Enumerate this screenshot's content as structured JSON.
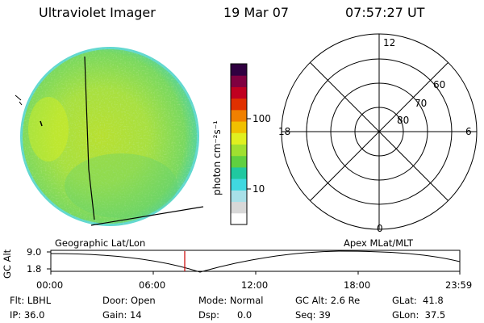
{
  "header": {
    "instrument": "Ultraviolet Imager",
    "date": "19 Mar 07",
    "time": "07:57:27 UT"
  },
  "colorbar": {
    "unit_label": "photon cm⁻²s⁻¹",
    "ticks": [
      "100",
      "10"
    ],
    "colors": [
      "#ffffff",
      "#d8d8d8",
      "#a8e0e8",
      "#40d8e0",
      "#20c8a0",
      "#60d040",
      "#a0e030",
      "#e0f020",
      "#f0c000",
      "#f08000",
      "#e03000",
      "#c00020",
      "#800040",
      "#300040"
    ]
  },
  "polar": {
    "mlt_labels": {
      "top": "12",
      "bottom": "0",
      "left": "18",
      "right": "6"
    },
    "lat_labels": [
      "60",
      "70",
      "80"
    ]
  },
  "timeline": {
    "left_title": "Geographic Lat/Lon",
    "right_title": "Apex MLat/MLT",
    "axis_label": "GC Alt",
    "y_ticks": [
      "9.0",
      "1.8"
    ],
    "x_ticks": [
      "00:00",
      "06:00",
      "12:00",
      "18:00",
      "23:59"
    ],
    "current_time_color": "#cc0000"
  },
  "status": {
    "flt": "Flt: LBHL",
    "door": "Door: Open",
    "mode": "Mode: Normal",
    "gc_alt": "GC Alt: 2.6 Re",
    "glat": "GLat:  41.8",
    "ip": "IP: 36.0",
    "gain": "Gain: 14",
    "dsp": "Dsp:      0.0",
    "seq": "Seq: 39",
    "glon": "GLon:  37.5"
  }
}
